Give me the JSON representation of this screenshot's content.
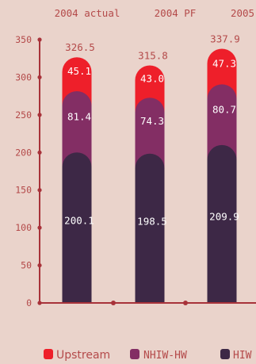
{
  "chart_data": {
    "type": "bar",
    "stacked": true,
    "categories": [
      "2004 actual",
      "2004 PF",
      "2005"
    ],
    "series": [
      {
        "name": "HIW",
        "values": [
          200.1,
          198.5,
          209.9
        ],
        "color": "#3d2846"
      },
      {
        "name": "NHIW-HW",
        "values": [
          81.4,
          74.3,
          80.7
        ],
        "color": "#832e64"
      },
      {
        "name": "Upstream",
        "values": [
          45.1,
          43.0,
          47.3
        ],
        "color": "#ee1f2a"
      }
    ],
    "totals": [
      "326.5",
      "315.8",
      "337.9"
    ],
    "segment_labels": [
      [
        "200.1",
        "81.4",
        "45.1"
      ],
      [
        "198.5",
        "74.3",
        "43.0"
      ],
      [
        "209.9",
        "80.7",
        "47.3"
      ]
    ],
    "ylim": [
      0,
      350
    ],
    "yticks": [
      0,
      50,
      100,
      150,
      200,
      250,
      300,
      350
    ],
    "legend": [
      "Upstream",
      "NHIW-HW",
      "HIW"
    ],
    "legend_position": "bottom",
    "axis_color": "#a8323a",
    "grid": false
  }
}
